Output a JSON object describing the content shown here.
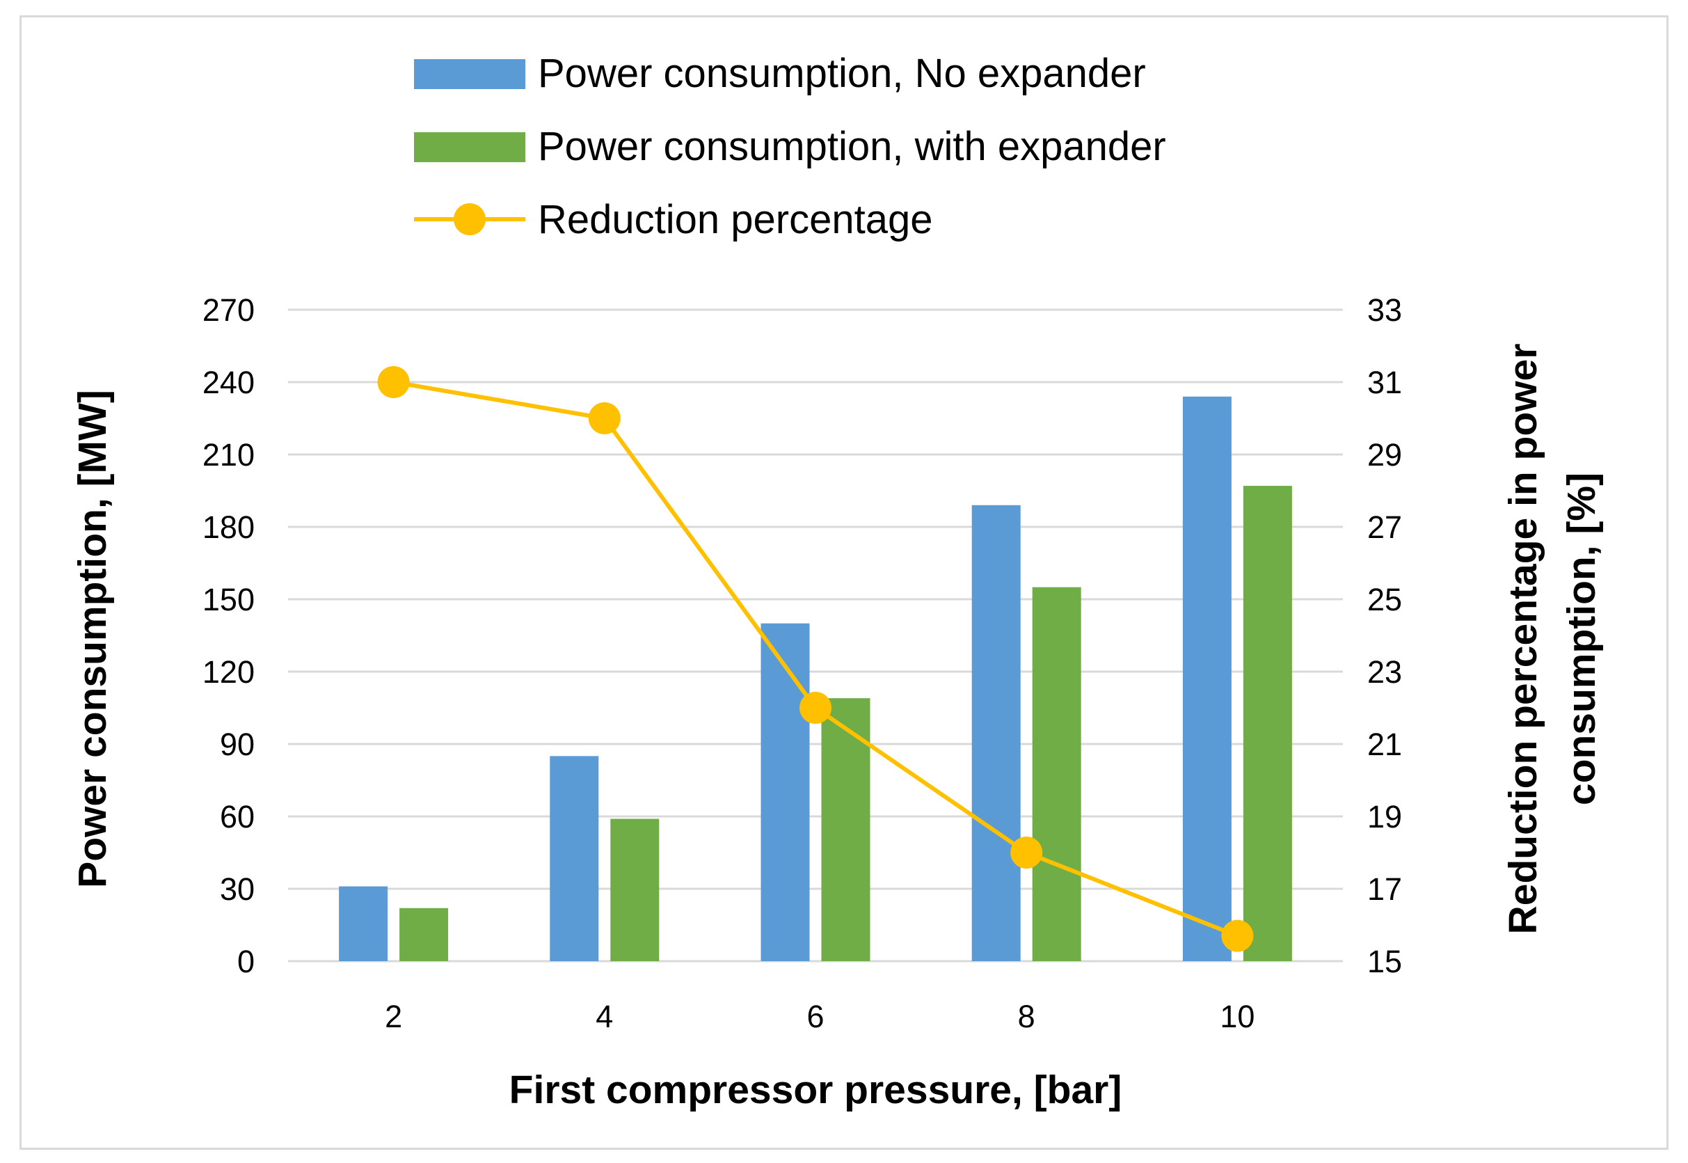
{
  "chart_data": {
    "type": "bar",
    "title": "",
    "categories": [
      "2",
      "4",
      "6",
      "8",
      "10"
    ],
    "xlabel": "First compressor pressure, [bar]",
    "ylabel": "Power consumption, [MW]",
    "y2label_line1": "Reduction percentage in power",
    "y2label_line2": "consumption, [%]",
    "ylim": [
      0,
      270
    ],
    "y2lim": [
      15,
      33
    ],
    "yticks": [
      "0",
      "30",
      "60",
      "90",
      "120",
      "150",
      "180",
      "210",
      "240",
      "270"
    ],
    "y2ticks": [
      "15",
      "17",
      "19",
      "21",
      "23",
      "25",
      "27",
      "29",
      "31",
      "33"
    ],
    "grid": true,
    "legend_position": "top",
    "series": [
      {
        "name": "Power consumption, No expander",
        "type": "bar",
        "axis": "left",
        "color": "#5b9bd5",
        "values": [
          31,
          85,
          140,
          189,
          234
        ]
      },
      {
        "name": "Power consumption, with expander",
        "type": "bar",
        "axis": "left",
        "color": "#70ad47",
        "values": [
          22,
          59,
          109,
          155,
          197
        ]
      },
      {
        "name": "Reduction percentage",
        "type": "line",
        "axis": "right",
        "color": "#ffc000",
        "values": [
          31.0,
          30.0,
          22.0,
          18.0,
          15.7
        ]
      }
    ]
  }
}
